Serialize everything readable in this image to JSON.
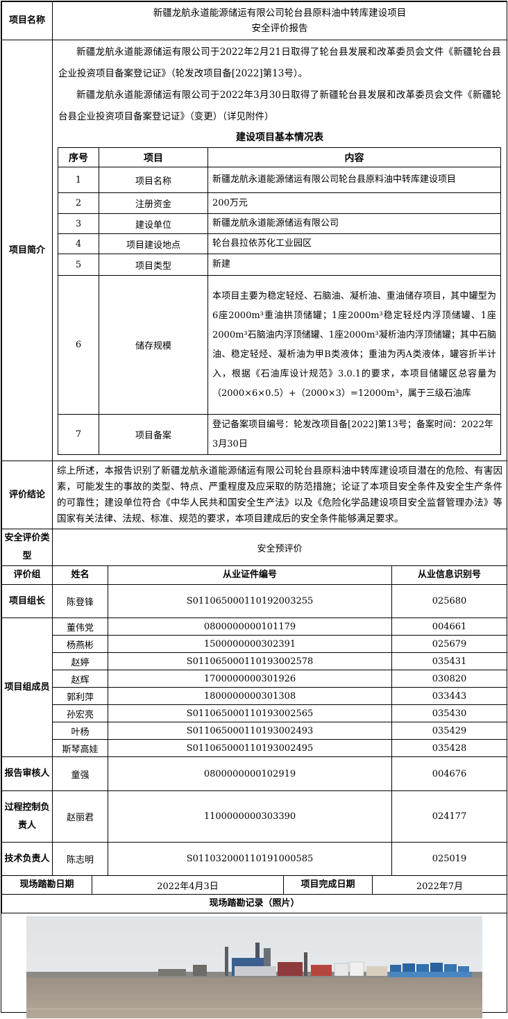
{
  "project_name_label": "项目名称",
  "project_name_line1": "新疆龙航永道能源储运有限公司轮台县原料油中转库建设项目",
  "project_name_line2": "安全评价报告",
  "intro_label": "项目简介",
  "intro_p1": "新疆龙航永道能源储运有限公司于2022年2月21日取得了轮台县发展和改革委员会文件《新疆轮台县企业投资项目备案登记证》（轮发改项目备[2022]第13号）。",
  "intro_p2": "新疆龙航永道能源储运有限公司于2022年3月30日取得了新疆轮台县发展和改革委员会文件《新疆轮台县企业投资项目备案登记证》（变更）（详见附件）",
  "table_title": "建设项目基本情况表",
  "table_headers": [
    "序号",
    "项目",
    "内容"
  ],
  "table_rows": [
    {
      "no": "1",
      "item": "项目名称",
      "content": "新疆龙航永道能源储运有限公司轮台县原料油中转库建设项目"
    },
    {
      "no": "2",
      "item": "注册资金",
      "content": "200万元"
    },
    {
      "no": "3",
      "item": "建设单位",
      "content": "新疆龙航永道能源储运有限公司"
    },
    {
      "no": "4",
      "item": "项目建设地点",
      "content": "轮台县拉依苏化工业园区"
    },
    {
      "no": "5",
      "item": "项目类型",
      "content": "新建"
    },
    {
      "no": "6",
      "item": "储存规模",
      "content": "本项目主要为稳定轻烃、石脑油、凝析油、重油储存项目，其中罐型为6座2000m³重油拱顶储罐；1座2000m³稳定轻烃内浮顶储罐、1座2000m³石脑油内浮顶储罐、1座2000m³凝析油内浮顶储罐；其中石脑油、稳定轻烃、凝析油为甲B类液体；重油为丙A类液体，罐容折半计入，根据《石油库设计规范》3.0.1的要求，本项目储罐区总容量为（2000×6×0.5）+（2000×3）=12000m³，属于三级石油库"
    },
    {
      "no": "7",
      "item": "项目备案",
      "content": "登记备案项目编号：轮发改项目备[2022]第13号；备案时间：2022年3月30日"
    }
  ],
  "conclusion_label": "评价结论",
  "conclusion_text": "综上所述，本报告识别了新疆龙航永道能源储运有限公司轮台县原料油中转库建设项目潜在的危险、有害因素，可能发生的事故的类型、特点、严重程度及应采取的防范措施；论证了本项目安全条件及安全生产条件的可靠性；建设单位符合《中华人民共和国安全生产法》以及《危险化学品建设项目安全监督管理办法》等国家有关法律、法规、标准、规范的要求，本项目建成后的安全条件能够满足要求。",
  "eval_type_label": "安全评价类型",
  "eval_type_value": "安全预评价",
  "group_headers": [
    "评价组",
    "姓名",
    "从业证件编号",
    "从业信息识别号"
  ],
  "leader_label": "项目组长",
  "leader": {
    "name": "陈登锋",
    "cert": "S011065000110192003255",
    "id": "025680"
  },
  "members_label": "项目组成员",
  "members": [
    {
      "name": "董伟党",
      "cert": "0800000000101179",
      "id": "004661"
    },
    {
      "name": "杨燕彬",
      "cert": "1500000000302391",
      "id": "025679"
    },
    {
      "name": "赵婷",
      "cert": "S011065000110193002578",
      "id": "035431"
    },
    {
      "name": "赵辉",
      "cert": "1700000000301926",
      "id": "030820"
    },
    {
      "name": "郭利萍",
      "cert": "1800000000301308",
      "id": "033443"
    },
    {
      "name": "孙宏亮",
      "cert": "S011065000110193002565",
      "id": "035430"
    },
    {
      "name": "叶杨",
      "cert": "S011065000110193002493",
      "id": "035429"
    },
    {
      "name": "斯琴高娃",
      "cert": "S011065000110193002495",
      "id": "035428"
    }
  ],
  "reviewer_label": "报告审核人",
  "reviewer": {
    "name": "童强",
    "cert": "0800000000102919",
    "id": "004676"
  },
  "process_label": "过程控制负责人",
  "process": {
    "name": "赵丽君",
    "cert": "1100000000303390",
    "id": "024177"
  },
  "tech_label": "技术负责人",
  "tech": {
    "name": "陈志明",
    "cert": "S011032000110191000585",
    "id": "025019"
  },
  "survey_date_label": "现场踏勘日期",
  "survey_date_value": "2022年4月3日",
  "complete_date_label": "项目完成日期",
  "complete_date_value": "2022年7月",
  "photo_title": "现场踏勘记录（照片）"
}
